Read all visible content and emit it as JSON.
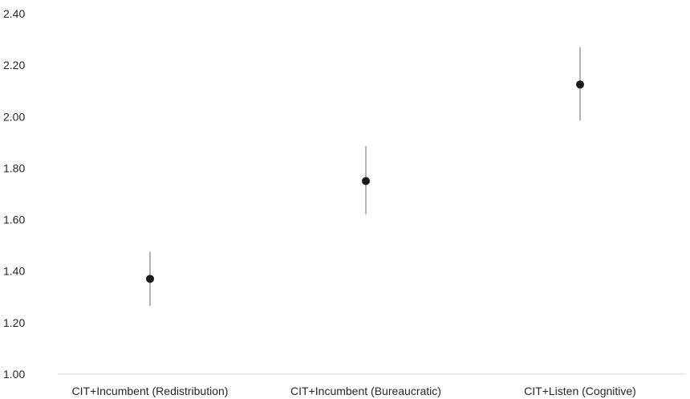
{
  "chart_data": {
    "type": "scatter",
    "title": "",
    "xlabel": "",
    "ylabel": "",
    "ylim": [
      1.0,
      2.4
    ],
    "y_ticks": [
      "1.00",
      "1.20",
      "1.40",
      "1.60",
      "1.80",
      "2.00",
      "2.20",
      "2.40"
    ],
    "grid": false,
    "legend": "none",
    "marker_color": "#1a1a1a",
    "errorbar_color": "#808080",
    "axis_color": "#d9d9d9",
    "categories": [
      "CIT+Incumbent (Redistribution)",
      "CIT+Incumbent (Bureaucratic)",
      "CIT+Listen (Cognitive)"
    ],
    "points": [
      {
        "value": 1.37,
        "low": 1.265,
        "high": 1.475
      },
      {
        "value": 1.75,
        "low": 1.62,
        "high": 1.885
      },
      {
        "value": 2.125,
        "low": 1.985,
        "high": 2.27
      }
    ]
  }
}
